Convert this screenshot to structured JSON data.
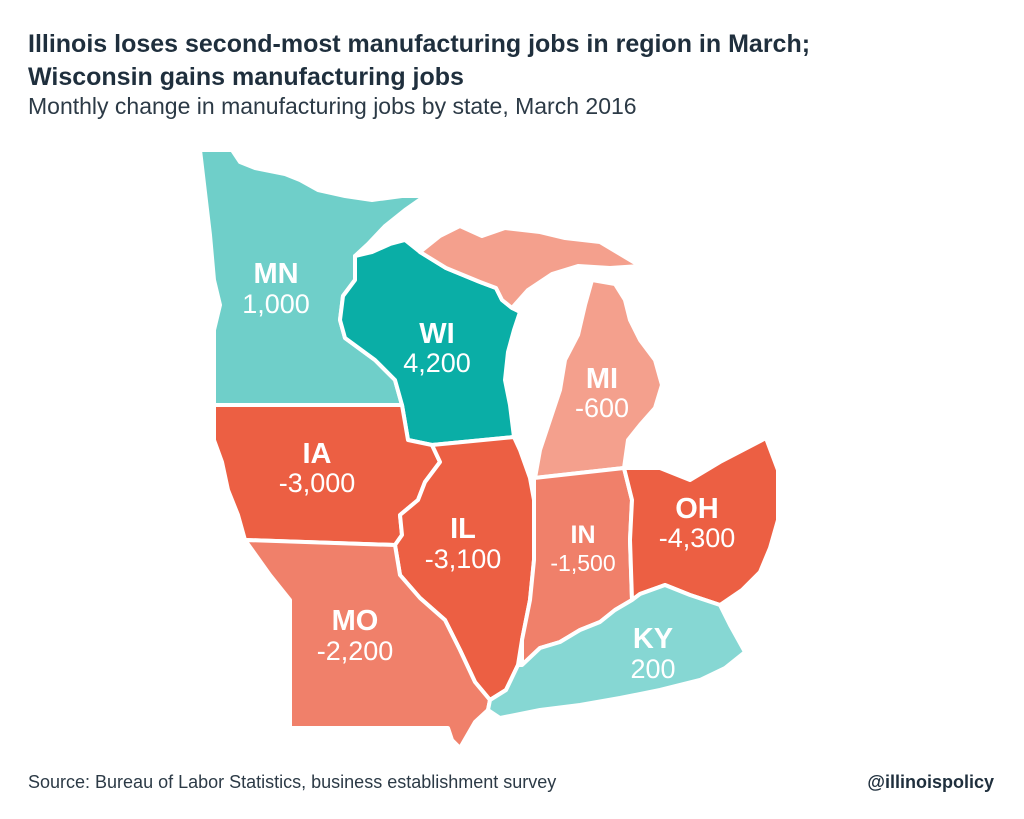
{
  "title_line1": "Illinois loses second-most manufacturing jobs in region in March;",
  "title_line2": "Wisconsin gains manufacturing jobs",
  "subtitle": "Monthly change in manufacturing jobs by state, March 2016",
  "source": "Source: Bureau of Labor Statistics, business establishment survey",
  "handle": "@illinoispolicy",
  "colors": {
    "gain_strong": "#0aaea6",
    "gain": "#6fcfc9",
    "gain_light": "#86d7d3",
    "loss_light": "#f4a08d",
    "loss": "#f0806a",
    "loss_strong": "#ec5f43"
  },
  "states": [
    {
      "abbr": "MN",
      "value": "1,000",
      "color": "#6fcfc9"
    },
    {
      "abbr": "WI",
      "value": "4,200",
      "color": "#0aaea6"
    },
    {
      "abbr": "MI",
      "value": "-600",
      "color": "#f4a08d"
    },
    {
      "abbr": "IA",
      "value": "-3,000",
      "color": "#ec5f43"
    },
    {
      "abbr": "IL",
      "value": "-3,100",
      "color": "#ec5f43"
    },
    {
      "abbr": "IN",
      "value": "-1,500",
      "color": "#f0806a"
    },
    {
      "abbr": "OH",
      "value": "-4,300",
      "color": "#ec5f43"
    },
    {
      "abbr": "MO",
      "value": "-2,200",
      "color": "#f0806a"
    },
    {
      "abbr": "KY",
      "value": "200",
      "color": "#86d7d3"
    }
  ]
}
